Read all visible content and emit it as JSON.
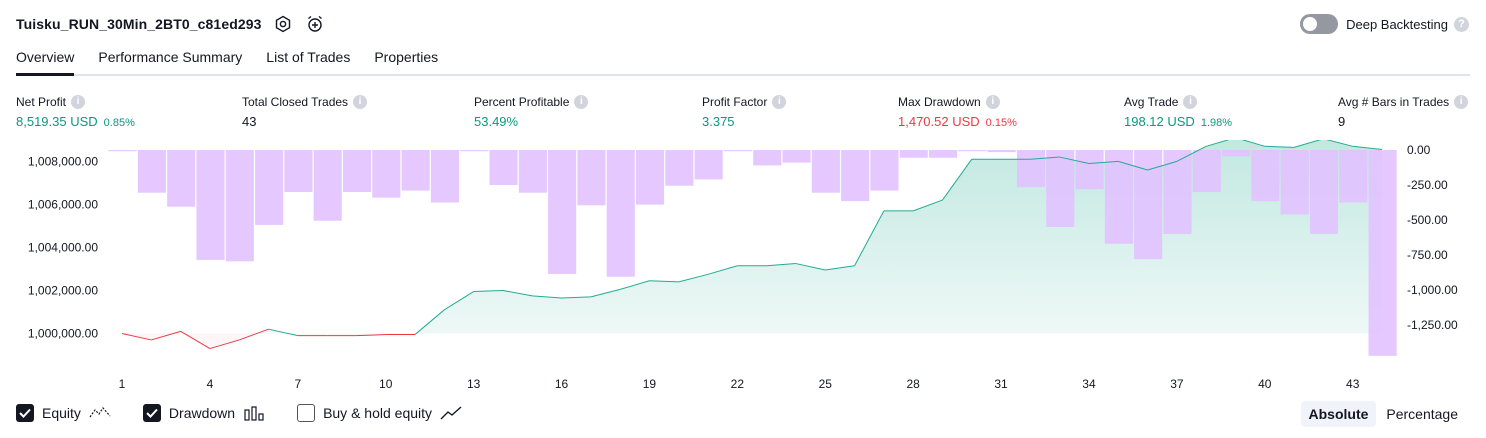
{
  "header": {
    "strategy_name": "Tuisku_RUN_30Min_2BT0_c81ed293",
    "icons": [
      "settings-icon",
      "alarm-add-icon"
    ],
    "deep_backtesting_label": "Deep Backtesting",
    "deep_backtesting_on": false
  },
  "tabs": [
    {
      "label": "Overview",
      "active": true
    },
    {
      "label": "Performance Summary",
      "active": false
    },
    {
      "label": "List of Trades",
      "active": false
    },
    {
      "label": "Properties",
      "active": false
    }
  ],
  "stats": {
    "net_profit": {
      "label": "Net Profit",
      "value": "8,519.35 USD",
      "pct": "0.85%"
    },
    "total_closed_trades": {
      "label": "Total Closed Trades",
      "value": "43"
    },
    "percent_profitable": {
      "label": "Percent Profitable",
      "value": "53.49%"
    },
    "profit_factor": {
      "label": "Profit Factor",
      "value": "3.375"
    },
    "max_drawdown": {
      "label": "Max Drawdown",
      "value": "1,470.52 USD",
      "pct": "0.15%"
    },
    "avg_trade": {
      "label": "Avg Trade",
      "value": "198.12 USD",
      "pct": "1.98%"
    },
    "avg_bars": {
      "label": "Avg # Bars in Trades",
      "value": "9"
    }
  },
  "colors": {
    "green": "#089981",
    "red": "#f23645",
    "equity_line": "#22ab94",
    "drawdown_bar": "#e1c2ff",
    "text": "#131722"
  },
  "chart_data": {
    "type": "line",
    "x": [
      1,
      2,
      3,
      4,
      5,
      6,
      7,
      8,
      9,
      10,
      11,
      12,
      13,
      14,
      15,
      16,
      17,
      18,
      19,
      20,
      21,
      22,
      23,
      24,
      25,
      26,
      27,
      28,
      29,
      30,
      31,
      32,
      33,
      34,
      35,
      36,
      37,
      38,
      39,
      40,
      41,
      42,
      43,
      44
    ],
    "x_ticks": [
      "1",
      "4",
      "7",
      "10",
      "13",
      "16",
      "19",
      "22",
      "25",
      "28",
      "31",
      "34",
      "37",
      "40",
      "43"
    ],
    "left_axis": {
      "ticks": [
        "1,000,000.00",
        "1,002,000.00",
        "1,004,000.00",
        "1,006,000.00",
        "1,008,000.00"
      ],
      "range": [
        999000,
        1008900
      ]
    },
    "right_axis": {
      "ticks": [
        "0.00",
        "-250.00",
        "-500.00",
        "-750.00",
        "-1,000.00",
        "-1,250.00"
      ],
      "range": [
        -1500,
        0
      ]
    },
    "series": [
      {
        "name": "Equity",
        "values": [
          1000000,
          999700,
          1000100,
          999300,
          999700,
          1000200,
          999900,
          999900,
          999900,
          999950,
          999950,
          1001100,
          1001950,
          1002000,
          1001750,
          1001650,
          1001700,
          1002050,
          1002450,
          1002400,
          1002750,
          1003150,
          1003150,
          1003250,
          1002950,
          1003150,
          1005700,
          1005700,
          1006200,
          1008100,
          1008100,
          1008100,
          1008200,
          1007900,
          1008000,
          1007600,
          1008000,
          1008700,
          1009100,
          1008700,
          1008650,
          1009050,
          1008700,
          1008550
        ]
      },
      {
        "name": "Drawdown",
        "values": [
          0,
          -305,
          -405,
          -785,
          -795,
          -535,
          -300,
          -505,
          -300,
          -340,
          -290,
          -375,
          0,
          -250,
          -305,
          -885,
          -395,
          -905,
          -390,
          -255,
          -210,
          0,
          -110,
          -90,
          -305,
          -365,
          -290,
          -55,
          -55,
          0,
          -15,
          -265,
          -550,
          -280,
          -670,
          -780,
          -600,
          -300,
          -45,
          -365,
          -460,
          -600,
          -375,
          -1470
        ]
      }
    ],
    "grid": false,
    "legend": "bottom-left"
  },
  "legend": {
    "equity": {
      "label": "Equity",
      "checked": true
    },
    "drawdown": {
      "label": "Drawdown",
      "checked": true
    },
    "buy_hold": {
      "label": "Buy & hold equity",
      "checked": false
    }
  },
  "mode": {
    "absolute_label": "Absolute",
    "percentage_label": "Percentage",
    "selected": "Absolute"
  }
}
